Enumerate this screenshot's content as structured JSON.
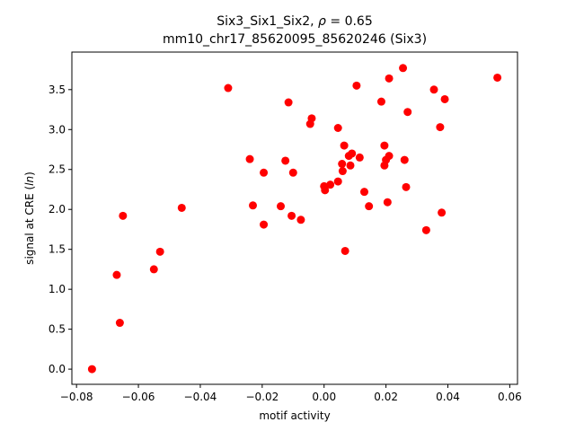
{
  "chart_data": {
    "type": "scatter",
    "title_line1_prefix": "Six3_Six1_Six2, ",
    "title_rho_symbol": "ρ",
    "title_rho_value": " = 0.65",
    "title_line2": "mm10_chr17_85620095_85620246 (Six3)",
    "xlabel": "motif activity",
    "ylabel_prefix": "signal at CRE (",
    "ylabel_italic": "ln",
    "ylabel_suffix": ")",
    "xlim": [
      -0.0815,
      0.0625
    ],
    "ylim": [
      -0.19,
      3.97
    ],
    "xticks": [
      -0.08,
      -0.06,
      -0.04,
      -0.02,
      0.0,
      0.02,
      0.04,
      0.06
    ],
    "xtick_labels": [
      "−0.08",
      "−0.06",
      "−0.04",
      "−0.02",
      "0.00",
      "0.02",
      "0.04",
      "0.06"
    ],
    "yticks": [
      0.0,
      0.5,
      1.0,
      1.5,
      2.0,
      2.5,
      3.0,
      3.5
    ],
    "ytick_labels": [
      "0.0",
      "0.5",
      "1.0",
      "1.5",
      "2.0",
      "2.5",
      "3.0",
      "3.5"
    ],
    "grid": false,
    "marker_color": "#ff0000",
    "points": [
      {
        "x": -0.075,
        "y": 0.0
      },
      {
        "x": -0.066,
        "y": 0.58
      },
      {
        "x": -0.067,
        "y": 1.18
      },
      {
        "x": -0.065,
        "y": 1.92
      },
      {
        "x": -0.055,
        "y": 1.25
      },
      {
        "x": -0.053,
        "y": 1.47
      },
      {
        "x": -0.046,
        "y": 2.02
      },
      {
        "x": -0.031,
        "y": 3.52
      },
      {
        "x": -0.024,
        "y": 2.63
      },
      {
        "x": -0.023,
        "y": 2.05
      },
      {
        "x": -0.0195,
        "y": 2.46
      },
      {
        "x": -0.0195,
        "y": 1.81
      },
      {
        "x": -0.014,
        "y": 2.04
      },
      {
        "x": -0.0125,
        "y": 2.61
      },
      {
        "x": -0.0115,
        "y": 3.34
      },
      {
        "x": -0.0105,
        "y": 1.92
      },
      {
        "x": -0.01,
        "y": 2.46
      },
      {
        "x": -0.0075,
        "y": 1.87
      },
      {
        "x": -0.0045,
        "y": 3.07
      },
      {
        "x": -0.004,
        "y": 3.14
      },
      {
        "x": 0.0,
        "y": 2.29
      },
      {
        "x": 0.0003,
        "y": 2.24
      },
      {
        "x": 0.002,
        "y": 2.31
      },
      {
        "x": 0.0045,
        "y": 2.35
      },
      {
        "x": 0.0045,
        "y": 3.02
      },
      {
        "x": 0.0058,
        "y": 2.57
      },
      {
        "x": 0.006,
        "y": 2.48
      },
      {
        "x": 0.0065,
        "y": 2.8
      },
      {
        "x": 0.0068,
        "y": 1.48
      },
      {
        "x": 0.008,
        "y": 2.67
      },
      {
        "x": 0.0085,
        "y": 2.55
      },
      {
        "x": 0.009,
        "y": 2.7
      },
      {
        "x": 0.0105,
        "y": 3.55
      },
      {
        "x": 0.0115,
        "y": 2.65
      },
      {
        "x": 0.013,
        "y": 2.22
      },
      {
        "x": 0.0145,
        "y": 2.04
      },
      {
        "x": 0.0185,
        "y": 3.35
      },
      {
        "x": 0.0195,
        "y": 2.8
      },
      {
        "x": 0.0195,
        "y": 2.55
      },
      {
        "x": 0.02,
        "y": 2.62
      },
      {
        "x": 0.0205,
        "y": 2.09
      },
      {
        "x": 0.021,
        "y": 2.67
      },
      {
        "x": 0.021,
        "y": 3.64
      },
      {
        "x": 0.0255,
        "y": 3.77
      },
      {
        "x": 0.026,
        "y": 2.62
      },
      {
        "x": 0.0265,
        "y": 2.28
      },
      {
        "x": 0.027,
        "y": 3.22
      },
      {
        "x": 0.033,
        "y": 1.74
      },
      {
        "x": 0.0355,
        "y": 3.5
      },
      {
        "x": 0.0375,
        "y": 3.03
      },
      {
        "x": 0.038,
        "y": 1.96
      },
      {
        "x": 0.039,
        "y": 3.38
      },
      {
        "x": 0.056,
        "y": 3.65
      }
    ]
  }
}
